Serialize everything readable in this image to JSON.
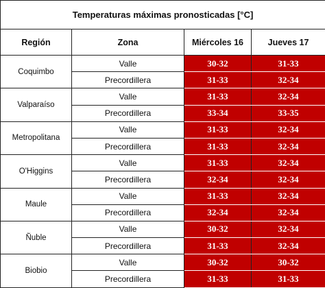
{
  "table": {
    "title": "Temperaturas máximas pronosticadas [°C]",
    "headers": [
      "Región",
      "Zona",
      "Miércoles 16",
      "Jueves 17"
    ],
    "rows": [
      {
        "region": "Coquimbo",
        "zones": [
          [
            "Valle",
            "30-32",
            "31-33"
          ],
          [
            "Precordillera",
            "31-33",
            "32-34"
          ]
        ]
      },
      {
        "region": "Valparaíso",
        "zones": [
          [
            "Valle",
            "31-33",
            "32-34"
          ],
          [
            "Precordillera",
            "33-34",
            "33-35"
          ]
        ]
      },
      {
        "region": "Metropolitana",
        "zones": [
          [
            "Valle",
            "31-33",
            "32-34"
          ],
          [
            "Precordillera",
            "31-33",
            "32-34"
          ]
        ]
      },
      {
        "region": "O'Higgins",
        "zones": [
          [
            "Valle",
            "31-33",
            "32-34"
          ],
          [
            "Precordillera",
            "32-34",
            "32-34"
          ]
        ]
      },
      {
        "region": "Maule",
        "zones": [
          [
            "Valle",
            "31-33",
            "32-34"
          ],
          [
            "Precordillera",
            "32-34",
            "32-34"
          ]
        ]
      },
      {
        "region": "Ñuble",
        "zones": [
          [
            "Valle",
            "30-32",
            "32-34"
          ],
          [
            "Precordillera",
            "31-33",
            "32-34"
          ]
        ]
      },
      {
        "region": "Biobio",
        "zones": [
          [
            "Valle",
            "30-32",
            "30-32"
          ],
          [
            "Precordillera",
            "31-33",
            "31-33"
          ]
        ]
      }
    ]
  }
}
